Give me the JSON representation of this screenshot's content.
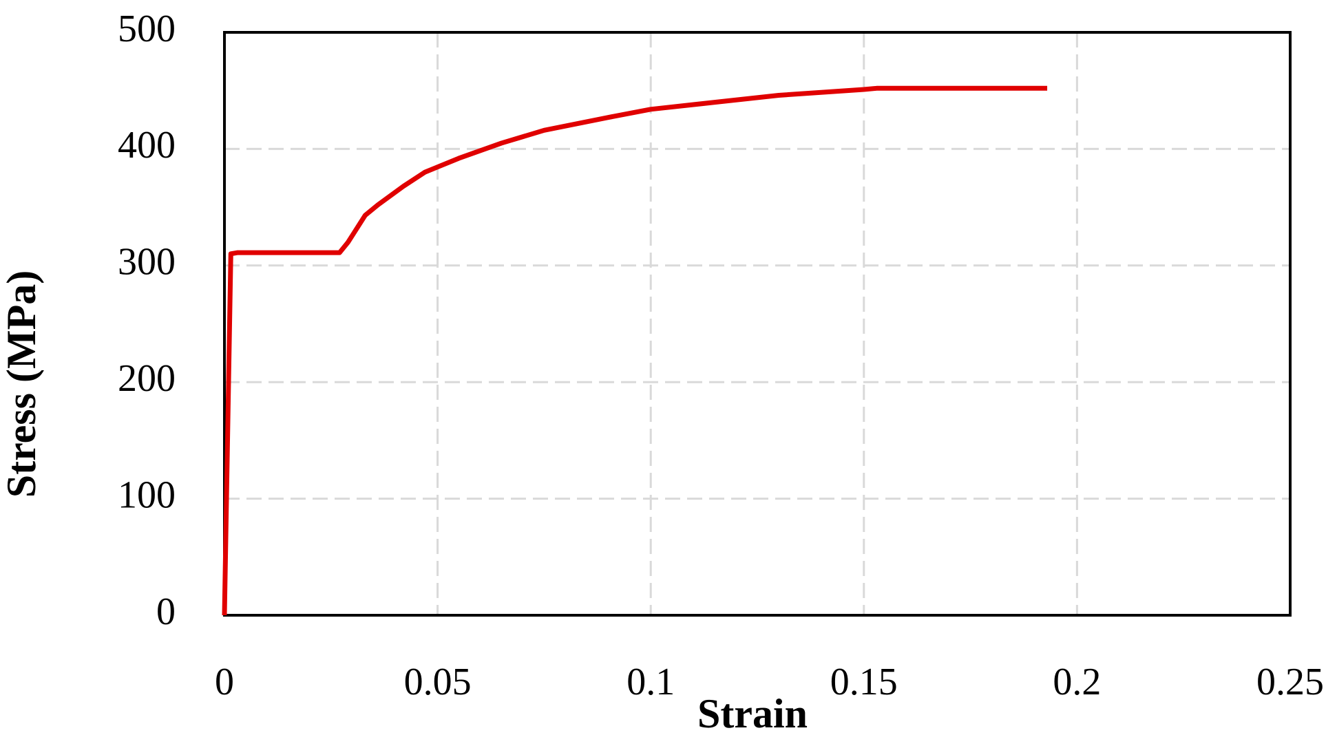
{
  "chart_data": {
    "type": "line",
    "x_label": "Strain",
    "y_label": "Stress (MPa)",
    "x": [
      0,
      0.0015,
      0.003,
      0.027,
      0.029,
      0.033,
      0.036,
      0.042,
      0.047,
      0.055,
      0.065,
      0.075,
      0.09,
      0.1,
      0.115,
      0.13,
      0.15,
      0.153,
      0.193
    ],
    "series": [
      {
        "color": "#e00000",
        "values": [
          0,
          310,
          311,
          311,
          320,
          343,
          352,
          368,
          380,
          392,
          405,
          416,
          427,
          434,
          440,
          446,
          451,
          452,
          452
        ]
      }
    ],
    "xlim": [
      0,
      0.25
    ],
    "xticks": [
      0,
      0.05,
      0.1,
      0.15,
      0.2,
      0.25
    ],
    "ylim": [
      0,
      500
    ],
    "yticks": [
      0,
      100,
      200,
      300,
      400,
      500
    ],
    "grid": true
  }
}
